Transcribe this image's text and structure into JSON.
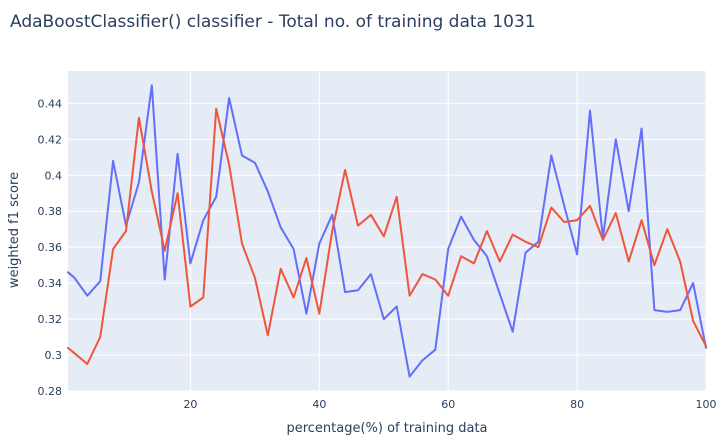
{
  "chart_data": {
    "type": "line",
    "title": "AdaBoostClassifier() classifier - Total no. of training data 1031",
    "xlabel": "percentage(%) of training data",
    "ylabel": "weighted f1 score",
    "xlim": [
      1,
      100
    ],
    "ylim": [
      0.28,
      0.458
    ],
    "x_ticks": [
      20,
      40,
      60,
      80,
      100
    ],
    "y_ticks": [
      0.28,
      0.3,
      0.32,
      0.34,
      0.36,
      0.38,
      0.4,
      0.42,
      0.44
    ],
    "y_tick_labels": [
      "0.28",
      "0.3",
      "0.32",
      "0.34",
      "0.36",
      "0.38",
      "0.4",
      "0.42",
      "0.44"
    ],
    "grid": true,
    "plot_bgcolor": "#e5ecf6",
    "series": [
      {
        "color": "#636efa",
        "x": [
          1,
          2,
          4,
          6,
          8,
          10,
          12,
          14,
          16,
          18,
          20,
          22,
          24,
          26,
          28,
          30,
          32,
          34,
          36,
          38,
          40,
          42,
          44,
          46,
          48,
          50,
          52,
          54,
          56,
          58,
          60,
          62,
          64,
          66,
          68,
          70,
          72,
          74,
          76,
          78,
          80,
          82,
          84,
          86,
          88,
          90,
          92,
          94,
          96,
          98,
          100
        ],
        "y": [
          0.346,
          0.343,
          0.333,
          0.341,
          0.408,
          0.372,
          0.396,
          0.45,
          0.342,
          0.412,
          0.351,
          0.375,
          0.388,
          0.443,
          0.411,
          0.407,
          0.391,
          0.371,
          0.359,
          0.323,
          0.362,
          0.378,
          0.335,
          0.336,
          0.345,
          0.32,
          0.327,
          0.288,
          0.297,
          0.303,
          0.359,
          0.377,
          0.364,
          0.355,
          0.334,
          0.313,
          0.357,
          0.363,
          0.411,
          0.383,
          0.356,
          0.436,
          0.365,
          0.42,
          0.38,
          0.426,
          0.325,
          0.324,
          0.325,
          0.34,
          0.304
        ]
      },
      {
        "color": "#ef553b",
        "x": [
          1,
          2,
          4,
          6,
          8,
          10,
          12,
          14,
          16,
          18,
          20,
          22,
          24,
          26,
          28,
          30,
          32,
          34,
          36,
          38,
          40,
          42,
          44,
          46,
          48,
          50,
          52,
          54,
          56,
          58,
          60,
          62,
          64,
          66,
          68,
          70,
          72,
          74,
          76,
          78,
          80,
          82,
          84,
          86,
          88,
          90,
          92,
          94,
          96,
          98,
          100
        ],
        "y": [
          0.304,
          0.301,
          0.295,
          0.31,
          0.359,
          0.369,
          0.432,
          0.391,
          0.358,
          0.39,
          0.327,
          0.332,
          0.437,
          0.406,
          0.362,
          0.343,
          0.311,
          0.348,
          0.332,
          0.354,
          0.323,
          0.369,
          0.403,
          0.372,
          0.378,
          0.366,
          0.388,
          0.333,
          0.345,
          0.342,
          0.333,
          0.355,
          0.351,
          0.369,
          0.352,
          0.367,
          0.363,
          0.36,
          0.382,
          0.374,
          0.375,
          0.383,
          0.364,
          0.379,
          0.352,
          0.375,
          0.35,
          0.37,
          0.352,
          0.319,
          0.305
        ]
      }
    ]
  }
}
